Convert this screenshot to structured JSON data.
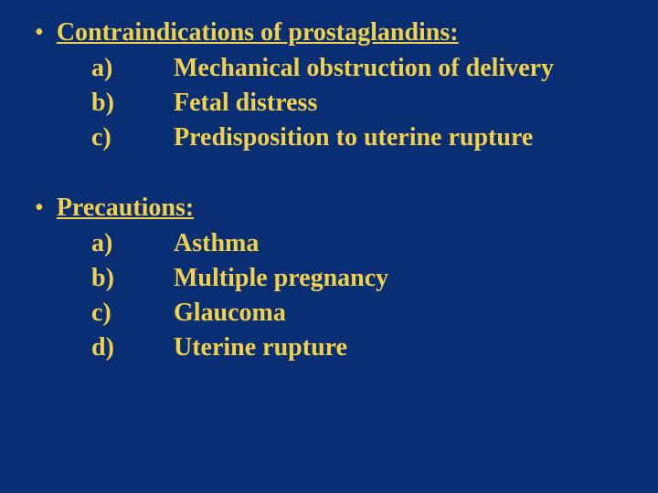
{
  "colors": {
    "background": "#0a2e73",
    "text": "#f2d14a"
  },
  "typography": {
    "font_family": "Georgia, Times New Roman, serif",
    "heading_fontsize": 28,
    "item_fontsize": 28,
    "font_weight": "bold"
  },
  "sections": [
    {
      "bullet": "•",
      "heading": "Contraindications  of prostaglandins:",
      "items": [
        {
          "marker": "a)",
          "text": "Mechanical obstruction of delivery"
        },
        {
          "marker": "b)",
          "text": "Fetal distress"
        },
        {
          "marker": "c)",
          "text": "Predisposition to uterine rupture"
        }
      ]
    },
    {
      "bullet": "•",
      "heading": "Precautions:",
      "items": [
        {
          "marker": "a)",
          "text": "Asthma"
        },
        {
          "marker": "b)",
          "text": "Multiple pregnancy"
        },
        {
          "marker": "c)",
          "text": "Glaucoma"
        },
        {
          "marker": "d)",
          "text": "Uterine rupture"
        }
      ]
    }
  ]
}
